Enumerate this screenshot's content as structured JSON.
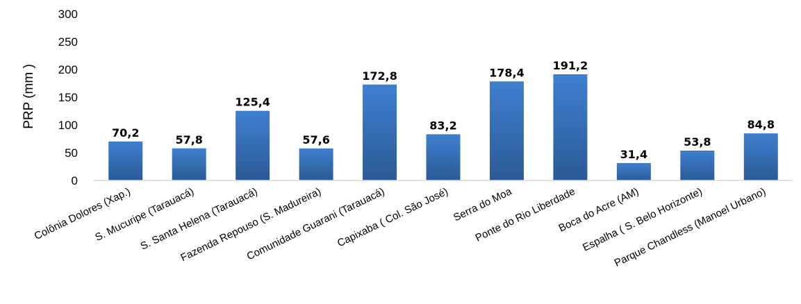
{
  "chart_data": {
    "type": "bar",
    "title": "",
    "xlabel": "",
    "ylabel": "PRP (mm )",
    "ylim": [
      0,
      300
    ],
    "yticks": [
      0,
      50,
      100,
      150,
      200,
      250,
      300
    ],
    "grid": false,
    "legend": "none",
    "categories": [
      "Colônia Dolores (Xap.)",
      "S. Mucuripe (Tarauacá)",
      "S. Santa Helena (Tarauacá)",
      "Fazenda Repouso (S. Madureira)",
      "Comunidade Guarani (Tarauacá)",
      "Capixaba ( Col. São José)",
      "Serra do Moa",
      "Ponte do Rio Liberdade",
      "Boca do Acre (AM)",
      "Espalha ( S. Belo Horizonte)",
      "Parque Chandless (Manoel Urbano)"
    ],
    "values": [
      70.2,
      57.8,
      125.4,
      57.6,
      172.8,
      83.2,
      178.4,
      191.2,
      31.4,
      53.8,
      84.8
    ],
    "data_labels": [
      "70,2",
      "57,8",
      "125,4",
      "57,6",
      "172,8",
      "83,2",
      "178,4",
      "191,2",
      "31,4",
      "53,8",
      "84,8"
    ],
    "colors": {
      "bar_top": "#3f7fcf",
      "bar_bottom": "#2b5a96",
      "axis": "#d9d9d9"
    }
  }
}
